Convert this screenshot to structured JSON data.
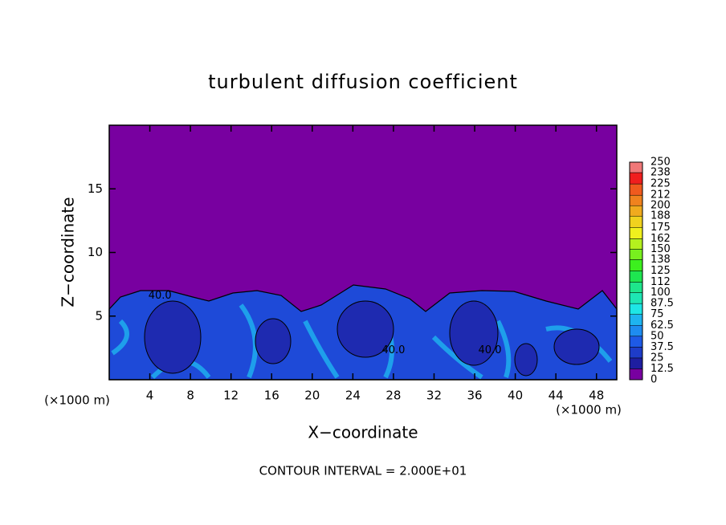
{
  "chart_data": {
    "type": "contour",
    "title": "turbulent diffusion coefficient",
    "xlabel": "X−coordinate",
    "ylabel": "Z−coordinate",
    "x_unit": "(×1000 m)",
    "footnote": "CONTOUR INTERVAL = 2.000E+01",
    "xlim": [
      0,
      50
    ],
    "xticks": [
      4,
      8,
      12,
      16,
      20,
      24,
      28,
      32,
      36,
      40,
      44,
      48
    ],
    "ylim": [
      0,
      20
    ],
    "yticks": [
      5,
      10,
      15
    ],
    "colorbar": {
      "ticks": [
        0,
        12.5,
        25,
        37.5,
        50,
        62.5,
        75,
        87.5,
        100,
        112,
        125,
        138,
        150,
        162,
        175,
        188,
        200,
        212,
        225,
        238,
        250
      ],
      "colors": [
        "#7800a0",
        "#1e1ea0",
        "#1e3cc8",
        "#1e5ae6",
        "#1e8cf0",
        "#1eb4f0",
        "#1ee6e6",
        "#1ee6b4",
        "#1ee68c",
        "#1ee650",
        "#3cf01e",
        "#78f01e",
        "#b4f01e",
        "#f0f01e",
        "#f0d21e",
        "#f0aa1e",
        "#f0821e",
        "#f05a1e",
        "#f01e1e",
        "#f07878"
      ]
    },
    "contour_labels": [
      {
        "text": "40.0",
        "x": 5,
        "y": 6.6
      },
      {
        "text": "40.0",
        "x": 28,
        "y": 2.3
      },
      {
        "text": "40.0",
        "x": 37.5,
        "y": 2.3
      }
    ]
  }
}
